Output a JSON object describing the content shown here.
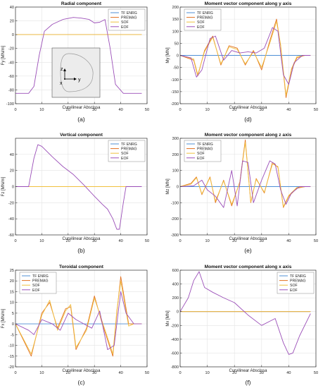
{
  "figure": {
    "colors": {
      "TF ENRG": "#4f8fd6",
      "PREMAG": "#e2701f",
      "SOF": "#f0c040",
      "EOF": "#9b4fb8"
    }
  },
  "chart_data": [
    {
      "type": "line",
      "panel_label": "(a)",
      "title": "Radial component",
      "xlabel": "Curvilinear Abscissa",
      "ylabel": "Fy [MN/m]",
      "xlim": [
        0,
        50
      ],
      "ylim": [
        -100,
        40
      ],
      "xticks": [
        0,
        10,
        20,
        30,
        40,
        50
      ],
      "yticks": [
        -100,
        -80,
        -60,
        -40,
        -20,
        0,
        20,
        40
      ],
      "grid": true,
      "legend": "top-right",
      "inset": {
        "present": true,
        "axis_labels": [
          "z",
          "y",
          "x"
        ]
      },
      "series": [
        {
          "name": "TF ENRG",
          "x": [
            0,
            48
          ],
          "y": [
            0,
            0
          ]
        },
        {
          "name": "PREMAG",
          "x": [
            0,
            48
          ],
          "y": [
            0,
            0
          ]
        },
        {
          "name": "SOF",
          "x": [
            0,
            48
          ],
          "y": [
            0,
            0
          ]
        },
        {
          "name": "EOF",
          "x": [
            0,
            5,
            7,
            9,
            11,
            14,
            18,
            22,
            25,
            28,
            30,
            32,
            34,
            36,
            38,
            41,
            48
          ],
          "y": [
            -85,
            -85,
            -75,
            -30,
            5,
            15,
            22,
            25,
            24,
            22,
            17,
            18,
            22,
            -20,
            -72,
            -85,
            -85
          ]
        }
      ]
    },
    {
      "type": "line",
      "panel_label": "(b)",
      "title": "Vertical component",
      "xlabel": "Curvilinear Abscissa",
      "ylabel": "Fz [MN/m]",
      "xlim": [
        0,
        50
      ],
      "ylim": [
        -60,
        60
      ],
      "xticks": [
        0,
        10,
        20,
        30,
        40,
        50
      ],
      "yticks": [
        -60,
        -40,
        -20,
        0,
        20,
        40
      ],
      "grid": true,
      "legend": "top-right",
      "series": [
        {
          "name": "TF ENRG",
          "x": [
            0,
            48
          ],
          "y": [
            0,
            0
          ]
        },
        {
          "name": "PREMAG",
          "x": [
            0,
            48
          ],
          "y": [
            0,
            0
          ]
        },
        {
          "name": "SOF",
          "x": [
            0,
            48
          ],
          "y": [
            0,
            0
          ]
        },
        {
          "name": "EOF",
          "x": [
            0,
            5,
            7,
            8.5,
            10,
            14,
            18,
            22,
            26,
            30,
            33,
            35,
            37,
            38.5,
            39.5,
            41,
            42,
            48
          ],
          "y": [
            0,
            0,
            35,
            52,
            50,
            37,
            25,
            15,
            2,
            -12,
            -22,
            -28,
            -40,
            -53,
            -53,
            -20,
            0,
            0
          ]
        }
      ]
    },
    {
      "type": "line",
      "panel_label": "(c)",
      "title": "Toroidal component",
      "xlabel": "Curvilinear Abscissa",
      "ylabel": "Fx [MN/m]",
      "xlim": [
        0,
        50
      ],
      "ylim": [
        -20,
        25
      ],
      "xticks": [
        0,
        10,
        20,
        30,
        40,
        50
      ],
      "yticks": [
        -20,
        -15,
        -10,
        -5,
        0,
        5,
        10,
        15,
        20,
        25
      ],
      "grid": true,
      "legend": "top-left",
      "series": [
        {
          "name": "TF ENRG",
          "x": [
            0,
            48
          ],
          "y": [
            0,
            0
          ]
        },
        {
          "name": "PREMAG",
          "x": [
            0,
            6,
            10,
            13,
            16,
            19,
            21,
            23,
            27,
            30,
            33,
            37,
            38.5,
            40,
            43,
            45,
            48
          ],
          "y": [
            0,
            -15,
            5,
            10,
            -2,
            7,
            8,
            -12,
            -2,
            13,
            0,
            -15,
            5,
            22,
            0,
            0,
            0
          ]
        },
        {
          "name": "SOF",
          "x": [
            0,
            6,
            10,
            13,
            16,
            19,
            21,
            23,
            27,
            30,
            33,
            37,
            38.5,
            40,
            43,
            45,
            48
          ],
          "y": [
            0,
            -14,
            4,
            11,
            -3,
            6,
            9,
            -11,
            -3,
            12,
            1,
            -14,
            6,
            20,
            -1,
            0,
            0
          ]
        },
        {
          "name": "EOF",
          "x": [
            0,
            5,
            7,
            10,
            14,
            17,
            20,
            23,
            26,
            29,
            32,
            35,
            37.5,
            40,
            42,
            45,
            48
          ],
          "y": [
            0,
            -3,
            -5,
            2,
            0,
            -3,
            5,
            2,
            0,
            -2,
            6,
            -12,
            -10,
            15,
            5,
            0,
            0
          ]
        }
      ]
    },
    {
      "type": "line",
      "panel_label": "(d)",
      "title": "Moment vector component along y axis",
      "xlabel": "Curvilinear Abscissa",
      "ylabel": "My [MN]",
      "xlim": [
        0,
        50
      ],
      "ylim": [
        -200,
        200
      ],
      "xticks": [
        0,
        10,
        20,
        30,
        40,
        50
      ],
      "yticks": [
        -200,
        -150,
        -100,
        -50,
        0,
        50,
        100,
        150,
        200
      ],
      "grid": true,
      "legend": "top-left",
      "series": [
        {
          "name": "TF ENRG",
          "x": [
            0,
            48
          ],
          "y": [
            0,
            0
          ]
        },
        {
          "name": "PREMAG",
          "x": [
            0,
            5,
            6.5,
            9,
            12,
            15,
            18,
            21,
            24,
            27,
            30,
            33,
            35.5,
            37,
            39,
            41,
            43,
            46,
            48
          ],
          "y": [
            0,
            -20,
            -85,
            20,
            80,
            -40,
            40,
            30,
            -40,
            20,
            -60,
            60,
            150,
            40,
            -175,
            -60,
            -10,
            0,
            0
          ]
        },
        {
          "name": "SOF",
          "x": [
            0,
            5,
            6.5,
            9,
            12,
            15,
            18,
            21,
            24,
            27,
            30,
            33,
            35.5,
            37,
            39,
            41,
            43,
            46,
            48
          ],
          "y": [
            0,
            -15,
            -80,
            15,
            75,
            -35,
            35,
            25,
            -35,
            15,
            -50,
            50,
            140,
            45,
            -165,
            -55,
            -5,
            0,
            0
          ]
        },
        {
          "name": "EOF",
          "x": [
            0,
            4,
            6,
            8,
            11,
            13,
            16,
            19,
            22,
            25,
            28,
            31,
            34,
            36,
            38,
            40,
            42,
            45,
            48
          ],
          "y": [
            0,
            -10,
            -90,
            -60,
            70,
            80,
            -20,
            20,
            10,
            15,
            10,
            30,
            115,
            100,
            -80,
            -120,
            -30,
            0,
            0
          ]
        }
      ]
    },
    {
      "type": "line",
      "panel_label": "(e)",
      "title": "Moment vector component along z axis",
      "xlabel": "Curvilinear Abscissa",
      "ylabel": "Mz [MN]",
      "xlim": [
        0,
        50
      ],
      "ylim": [
        -300,
        300
      ],
      "xticks": [
        0,
        10,
        20,
        30,
        40,
        50
      ],
      "yticks": [
        -300,
        -200,
        -100,
        0,
        100,
        200,
        300
      ],
      "grid": true,
      "legend": "top-left",
      "series": [
        {
          "name": "TF ENRG",
          "x": [
            0,
            48
          ],
          "y": [
            0,
            0
          ]
        },
        {
          "name": "PREMAG",
          "x": [
            0,
            4,
            6,
            8,
            11,
            13,
            16,
            19,
            22,
            24,
            26,
            28,
            31,
            34,
            36,
            38,
            40,
            43,
            46,
            48
          ],
          "y": [
            0,
            20,
            60,
            -50,
            60,
            -100,
            40,
            -120,
            30,
            290,
            -100,
            50,
            -40,
            150,
            120,
            -130,
            -60,
            -10,
            0,
            0
          ]
        },
        {
          "name": "SOF",
          "x": [
            0,
            4,
            6,
            8,
            11,
            13,
            16,
            19,
            22,
            24,
            26,
            28,
            31,
            34,
            36,
            38,
            40,
            43,
            46,
            48
          ],
          "y": [
            0,
            15,
            55,
            -45,
            55,
            -90,
            35,
            -110,
            25,
            275,
            -95,
            45,
            -35,
            140,
            125,
            -125,
            -55,
            -5,
            0,
            0
          ]
        },
        {
          "name": "EOF",
          "x": [
            0,
            5,
            8,
            10,
            13,
            16,
            19,
            21,
            23,
            25,
            27,
            30,
            33,
            35,
            37,
            39,
            41,
            44,
            48
          ],
          "y": [
            0,
            5,
            40,
            -20,
            -60,
            -130,
            100,
            -120,
            160,
            150,
            -100,
            40,
            160,
            140,
            -20,
            -110,
            -40,
            0,
            0
          ]
        }
      ]
    },
    {
      "type": "line",
      "panel_label": "(f)",
      "title": "Moment vector component along x axis",
      "xlabel": "Curvilinear Abscissa",
      "ylabel": "Mx [MN]",
      "xlim": [
        0,
        50
      ],
      "ylim": [
        -800,
        600
      ],
      "xticks": [
        0,
        10,
        20,
        30,
        40,
        50
      ],
      "yticks": [
        -800,
        -600,
        -400,
        -200,
        0,
        200,
        400,
        600
      ],
      "grid": true,
      "legend": "top-right",
      "series": [
        {
          "name": "TF ENRG",
          "x": [
            0,
            48
          ],
          "y": [
            0,
            0
          ]
        },
        {
          "name": "PREMAG",
          "x": [
            0,
            48
          ],
          "y": [
            0,
            0
          ]
        },
        {
          "name": "SOF",
          "x": [
            0,
            48
          ],
          "y": [
            0,
            0
          ]
        },
        {
          "name": "EOF",
          "x": [
            0,
            3,
            5,
            7,
            9,
            12,
            16,
            20,
            25,
            30,
            33,
            35,
            38,
            40,
            41.5,
            44,
            48
          ],
          "y": [
            0,
            200,
            450,
            580,
            350,
            280,
            200,
            130,
            -50,
            -200,
            -140,
            -100,
            -450,
            -620,
            -600,
            -350,
            -30
          ]
        }
      ]
    }
  ]
}
